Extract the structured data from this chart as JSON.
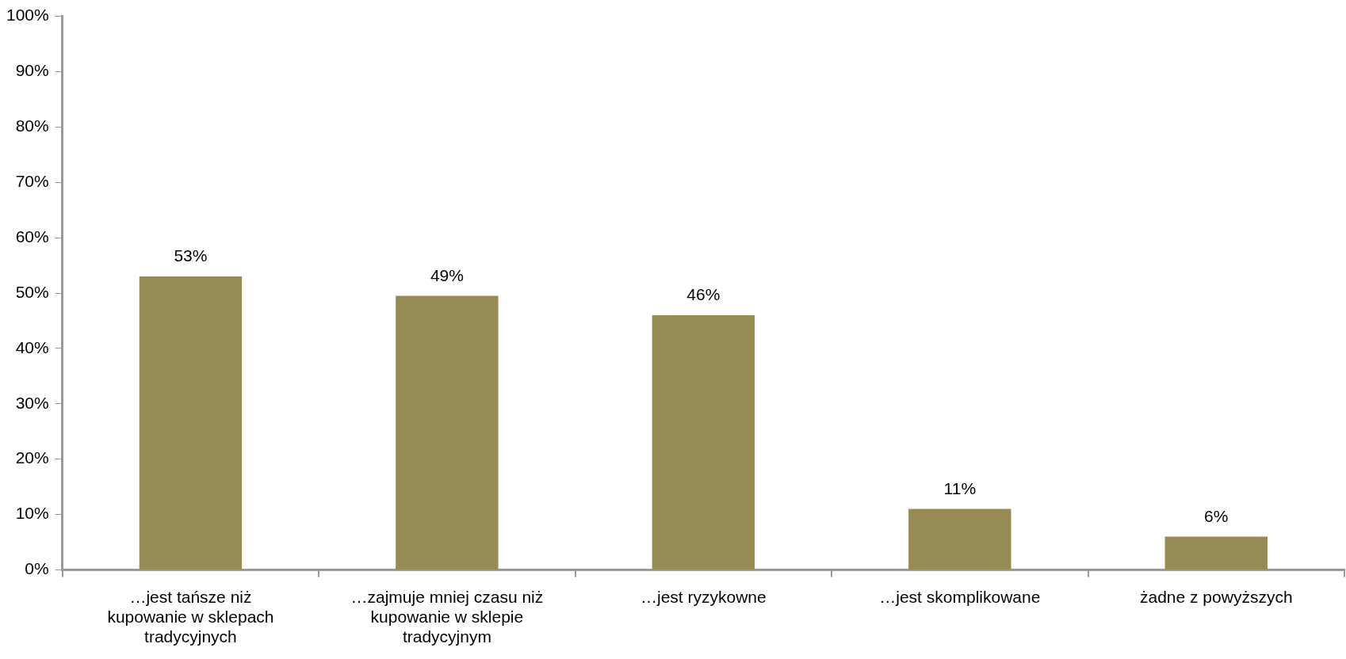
{
  "chart_data": {
    "type": "bar",
    "categories": [
      "…jest tańsze niż kupowanie w sklepach tradycyjnych",
      "…zajmuje mniej czasu niż kupowanie w sklepie tradycyjnym",
      "…jest ryzykowne",
      "…jest skomplikowane",
      "żadne z powyższych"
    ],
    "values": [
      53,
      49.5,
      46,
      11,
      6
    ],
    "value_labels": [
      "53%",
      "49%",
      "46%",
      "11%",
      "6%"
    ],
    "color": "#968b53",
    "ylim": [
      0,
      100
    ],
    "yticks": [
      {
        "value": 0,
        "label": "0%"
      },
      {
        "value": 10,
        "label": "10%"
      },
      {
        "value": 20,
        "label": "20%"
      },
      {
        "value": 30,
        "label": "30%"
      },
      {
        "value": 40,
        "label": "40%"
      },
      {
        "value": 50,
        "label": "50%"
      },
      {
        "value": 60,
        "label": "60%"
      },
      {
        "value": 70,
        "label": "70%"
      },
      {
        "value": 80,
        "label": "80%"
      },
      {
        "value": 90,
        "label": "90%"
      },
      {
        "value": 100,
        "label": "100%"
      }
    ],
    "grid": false,
    "legend": false
  }
}
